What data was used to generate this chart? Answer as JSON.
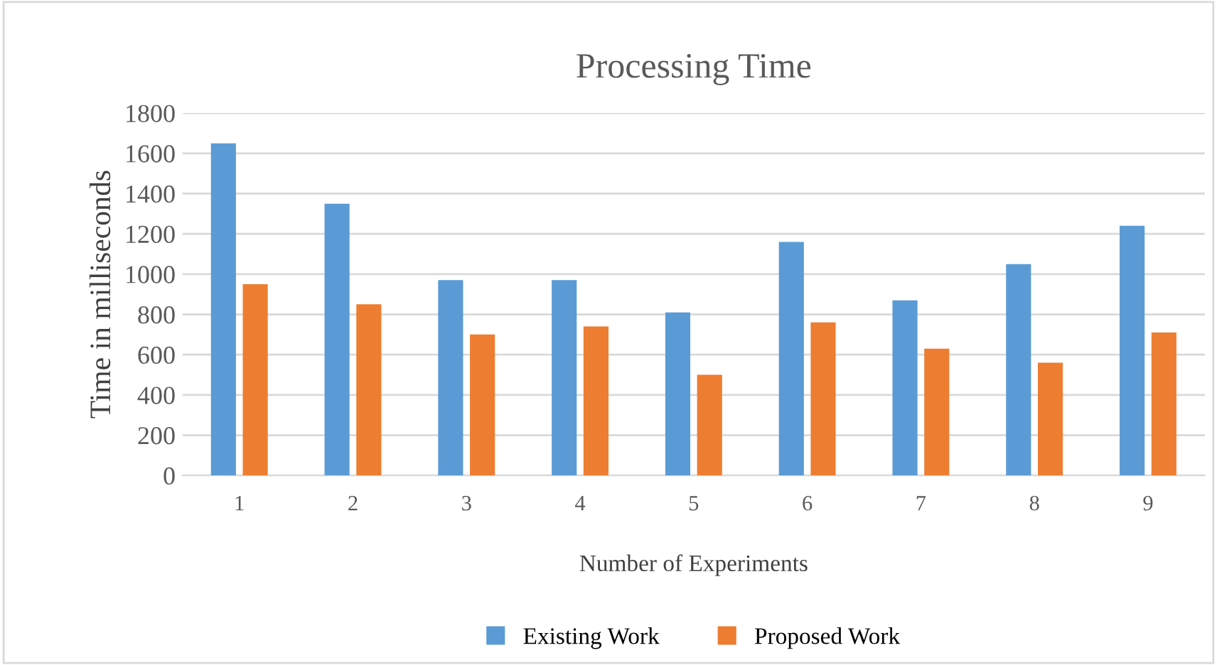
{
  "chart_data": {
    "type": "bar",
    "title": "Processing Time",
    "xlabel": "Number of Experiments",
    "ylabel": "Time in milliseconds",
    "categories": [
      "1",
      "2",
      "3",
      "4",
      "5",
      "6",
      "7",
      "8",
      "9"
    ],
    "series": [
      {
        "name": "Existing Work",
        "color": "#5b9bd5",
        "values": [
          1650,
          1350,
          970,
          970,
          810,
          1160,
          870,
          1050,
          1240
        ]
      },
      {
        "name": "Proposed Work",
        "color": "#ed7d31",
        "values": [
          950,
          850,
          700,
          740,
          500,
          760,
          630,
          560,
          710
        ]
      }
    ],
    "ylim": [
      0,
      1800
    ],
    "yticks": [
      0,
      200,
      400,
      600,
      800,
      1000,
      1200,
      1400,
      1600,
      1800
    ],
    "grid": "y",
    "legend": "bottom"
  }
}
